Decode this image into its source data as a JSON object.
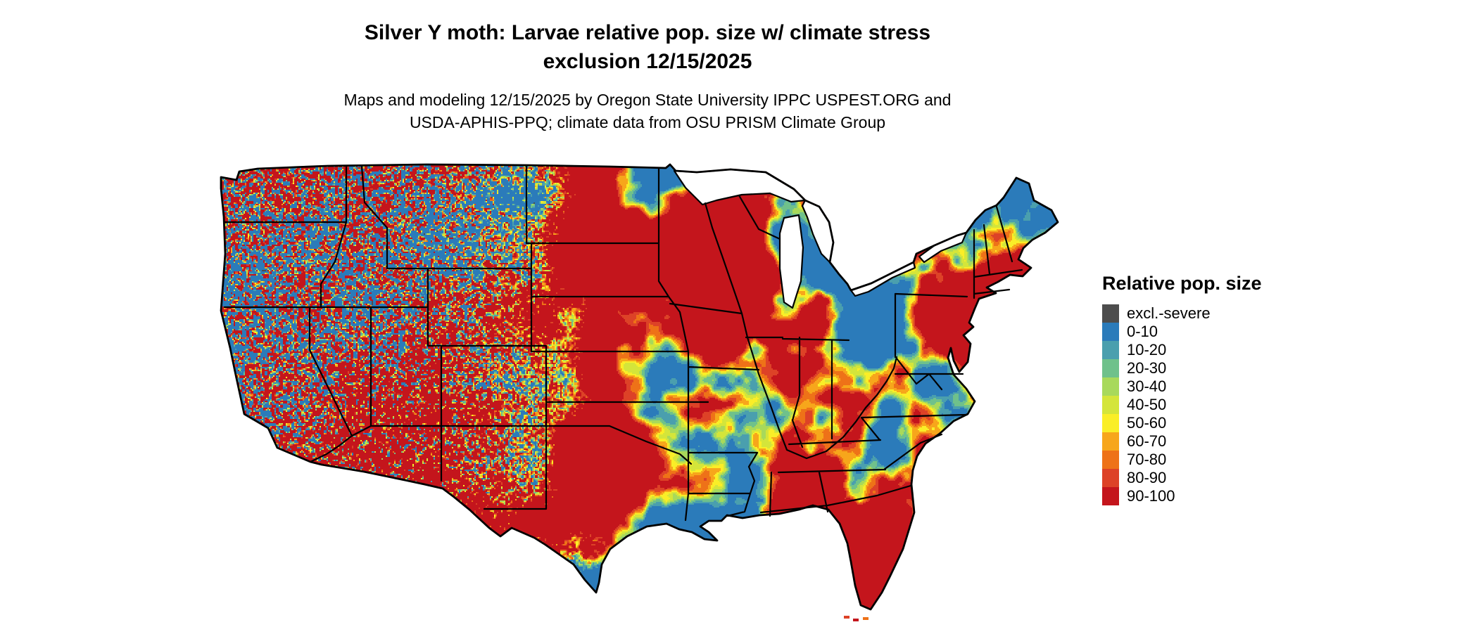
{
  "title": {
    "line1": "Silver Y moth: Larvae relative pop. size w/ climate stress",
    "line2": "exclusion 12/15/2025"
  },
  "subtitle": {
    "line1": "Maps and modeling 12/15/2025 by Oregon State University IPPC USPEST.ORG and",
    "line2": "USDA-APHIS-PPQ; climate data from OSU PRISM Climate Group"
  },
  "map": {
    "region": "Contiguous United States",
    "border_color": "#000000",
    "background_color": "#ffffff"
  },
  "legend": {
    "title": "Relative pop. size",
    "items": [
      {
        "label": "excl.-severe",
        "color": "#4d4d4d"
      },
      {
        "label": "0-10",
        "color": "#2b7bba"
      },
      {
        "label": "10-20",
        "color": "#4a9fae"
      },
      {
        "label": "20-30",
        "color": "#6fc18b"
      },
      {
        "label": "30-40",
        "color": "#a8d95b"
      },
      {
        "label": "40-50",
        "color": "#d4e53a"
      },
      {
        "label": "50-60",
        "color": "#faee27"
      },
      {
        "label": "60-70",
        "color": "#f7a61b"
      },
      {
        "label": "70-80",
        "color": "#ee7218"
      },
      {
        "label": "80-90",
        "color": "#dd4227"
      },
      {
        "label": "90-100",
        "color": "#c4151c"
      }
    ]
  }
}
